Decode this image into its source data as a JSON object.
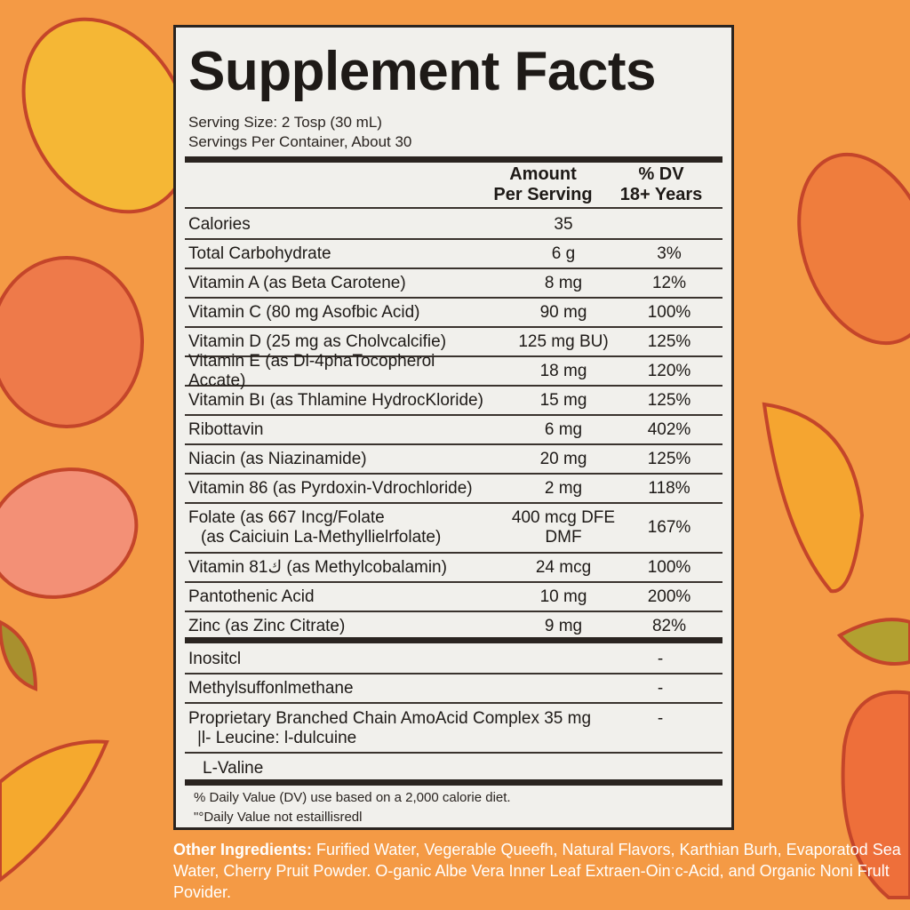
{
  "title": "Supplement Facts",
  "serving_size": "Serving Size: 2 Tosp (30 mL)",
  "servings_per_container": "Servings Per Container, About 30",
  "columns": {
    "amount_line1": "Amount",
    "amount_line2": "Per Serving",
    "dv_line1": "% DV",
    "dv_line2": "18+ Years"
  },
  "nutrients": [
    {
      "name": "Calories",
      "amount": "35",
      "dv": ""
    },
    {
      "name": "Total Carbohydrate",
      "amount": "6 g",
      "dv": "3%"
    },
    {
      "name": "Vitamin A (as Beta Carotene)",
      "amount": "8 mg",
      "dv": "12%"
    },
    {
      "name": "Vitamin C (80 mg Asofbic Acid)",
      "amount": "90 mg",
      "dv": "100%"
    },
    {
      "name": "Vitamin D (25 mg as Cholvcalcifie)",
      "amount": "125 mg BU)",
      "dv": "125%"
    },
    {
      "name": "Vitamin E (as Dl-4phaTocopheroi Accate)",
      "amount": "18 mg",
      "dv": "120%"
    },
    {
      "name": "Vitamin Bı (as Thlamine HydrocKloride)",
      "amount": "15 mg",
      "dv": "125%"
    },
    {
      "name": "Ribottavin",
      "amount": "6 mg",
      "dv": "402%"
    },
    {
      "name": "Niacin (as Niazinamide)",
      "amount": "20 mg",
      "dv": "125%"
    },
    {
      "name": "Vitamin 86 (as Pyrdoxin-Vdrochloride)",
      "amount": "2 mg",
      "dv": "118%"
    },
    {
      "name": "Folate (as 667 Incg/Folate",
      "name2": "(as Caiciuin La-Methyllielrfolate)",
      "amount": "400 mcg DFE",
      "amount2": "DMF",
      "dv": "167%"
    },
    {
      "name": "Vitamin 81ك (as Methylcobalamin)",
      "amount": "24 mcg",
      "dv": "100%"
    },
    {
      "name": "Pantothenic Acid",
      "amount": "10 mg",
      "dv": "200%"
    },
    {
      "name": "Zinc (as Zinc Citrate)",
      "amount": "9 mg",
      "dv": "82%"
    }
  ],
  "other_nutrients": [
    {
      "name": "Inositcl",
      "dv": "-"
    },
    {
      "name": "Methylsuffonlmethane",
      "dv": "-"
    },
    {
      "name": "Proprietary Branched Chain AmoAcid Complex 35 mg",
      "name2": "|l- Leucine: l-dulcuine",
      "dv": "-"
    },
    {
      "name": "L-Valine",
      "dv": ""
    }
  ],
  "footnotes": [
    "% Daily Value (DV) use based on a 2,000 calorie diet.",
    "\"°Daily Value not estaillisredl"
  ],
  "other_ingredients": {
    "label": "Other Ingredients:",
    "text": "Furified Water, Vegerable Queefh, Natural Flavors, Karthian Burh, Evaporatod Sea Water, Cherry Pruit Powder. O-ganic Albe Vera Inner Leaf Extraen-Oinˑc-Acid, and Organic Noni Frult Povider."
  },
  "colors": {
    "background": "#f49a45",
    "panel": "#f1f0ec",
    "ink": "#1e1a17",
    "fruit_outline": "#c4452a"
  }
}
